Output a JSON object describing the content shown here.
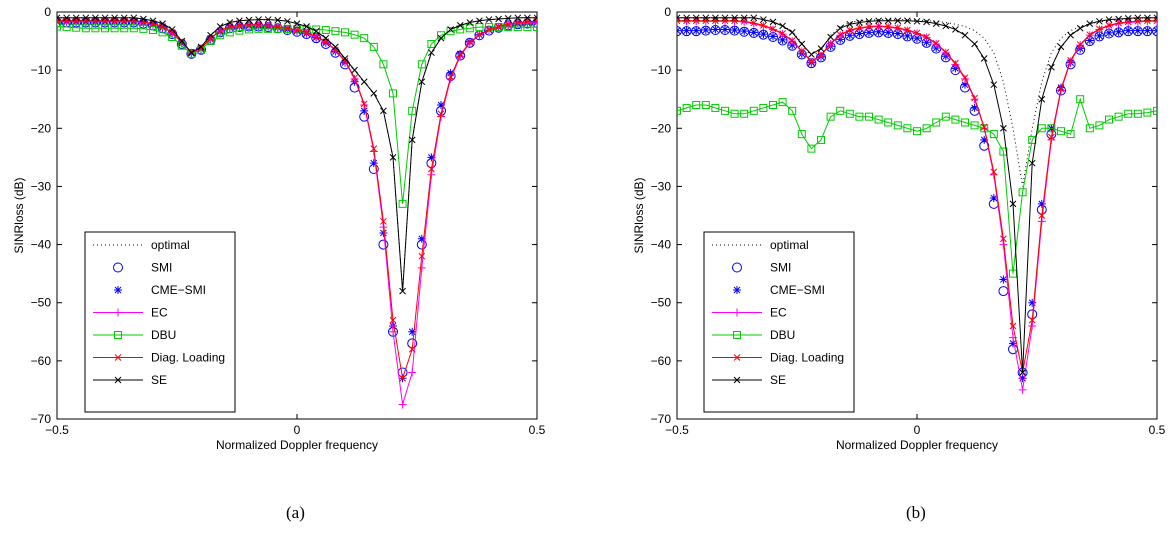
{
  "chart_data": [
    {
      "type": "line",
      "caption": "(a)",
      "xlabel": "Normalized Doppler frequency",
      "ylabel": "SINRloss (dB)",
      "xlim": [
        -0.5,
        0.5
      ],
      "ylim": [
        -70,
        0
      ],
      "xticks": [
        "−0.5",
        "0",
        "0.5"
      ],
      "yticks": [
        "−70",
        "−60",
        "−50",
        "−40",
        "−30",
        "−20",
        "−10",
        "0"
      ],
      "grid": false,
      "legend_position": "bottom-left",
      "legend": [
        {
          "name": "optimal",
          "color": "#000000",
          "marker": "none",
          "dash": "dotted"
        },
        {
          "name": "SMI",
          "color": "#0000ff",
          "marker": "circle",
          "dash": "none"
        },
        {
          "name": "CME−SMI",
          "color": "#0000ff",
          "marker": "star",
          "dash": "none"
        },
        {
          "name": "EC",
          "color": "#ff00ff",
          "marker": "plus",
          "dash": "solid"
        },
        {
          "name": "DBU",
          "color": "#00cc00",
          "marker": "square",
          "dash": "solid"
        },
        {
          "name": "Diag. Loading",
          "color": "#ff0000",
          "marker": "x",
          "dash": "solid"
        },
        {
          "name": "SE",
          "color": "#000000",
          "marker": "x",
          "dash": "solid"
        }
      ],
      "x": [
        -0.5,
        -0.48,
        -0.46,
        -0.44,
        -0.42,
        -0.4,
        -0.38,
        -0.36,
        -0.34,
        -0.32,
        -0.3,
        -0.28,
        -0.26,
        -0.24,
        -0.22,
        -0.2,
        -0.18,
        -0.16,
        -0.14,
        -0.12,
        -0.1,
        -0.08,
        -0.06,
        -0.04,
        -0.02,
        0,
        0.02,
        0.04,
        0.06,
        0.08,
        0.1,
        0.12,
        0.14,
        0.16,
        0.18,
        0.2,
        0.22,
        0.24,
        0.26,
        0.28,
        0.3,
        0.32,
        0.34,
        0.36,
        0.38,
        0.4,
        0.42,
        0.44,
        0.46,
        0.48,
        0.5
      ],
      "series": [
        {
          "name": "optimal",
          "values": [
            -1,
            -1,
            -1,
            -1,
            -1,
            -1,
            -1,
            -1,
            -1,
            -1.2,
            -1.5,
            -2,
            -3,
            -5,
            -7,
            -6,
            -4,
            -2.5,
            -1.8,
            -1.5,
            -1.4,
            -1.3,
            -1.3,
            -1.4,
            -1.6,
            -2,
            -2.5,
            -3.3,
            -4.5,
            -6,
            -8,
            -10,
            -12,
            -14,
            -17,
            -25,
            -48,
            -22,
            -12,
            -7,
            -4.5,
            -3,
            -2.3,
            -1.8,
            -1.5,
            -1.3,
            -1.2,
            -1.1,
            -1,
            -1,
            -1
          ]
        },
        {
          "name": "SMI",
          "values": [
            -1.8,
            -1.8,
            -1.8,
            -1.8,
            -1.8,
            -1.8,
            -1.8,
            -1.8,
            -1.8,
            -2,
            -2.3,
            -2.8,
            -3.8,
            -5.5,
            -7.2,
            -6.5,
            -4.8,
            -3.5,
            -2.8,
            -2.6,
            -2.5,
            -2.5,
            -2.6,
            -2.8,
            -3.1,
            -3.4,
            -3.8,
            -4.5,
            -5.5,
            -7,
            -9,
            -13,
            -18,
            -27,
            -40,
            -55,
            -62,
            -57,
            -40,
            -26,
            -17,
            -11,
            -7.5,
            -5.3,
            -4,
            -3.2,
            -2.7,
            -2.3,
            -2.1,
            -2,
            -1.9
          ]
        },
        {
          "name": "CME−SMI",
          "values": [
            -1.7,
            -1.7,
            -1.7,
            -1.7,
            -1.7,
            -1.7,
            -1.7,
            -1.7,
            -1.7,
            -1.9,
            -2.2,
            -2.7,
            -3.7,
            -5.4,
            -7.1,
            -6.4,
            -4.7,
            -3.4,
            -2.7,
            -2.5,
            -2.4,
            -2.4,
            -2.5,
            -2.7,
            -3,
            -3.3,
            -3.7,
            -4.4,
            -5.3,
            -6.8,
            -8.7,
            -12,
            -17,
            -26,
            -38,
            -54,
            -63,
            -55,
            -39,
            -25,
            -16,
            -10.5,
            -7.2,
            -5.1,
            -3.9,
            -3.1,
            -2.6,
            -2.2,
            -2,
            -1.9,
            -1.8
          ]
        },
        {
          "name": "EC",
          "values": [
            -1.6,
            -1.6,
            -1.6,
            -1.6,
            -1.6,
            -1.6,
            -1.6,
            -1.6,
            -1.6,
            -1.8,
            -2.1,
            -2.6,
            -3.6,
            -5.3,
            -7,
            -6.3,
            -4.6,
            -3.3,
            -2.6,
            -2.4,
            -2.3,
            -2.3,
            -2.4,
            -2.6,
            -2.9,
            -3.2,
            -3.6,
            -4.3,
            -5.2,
            -6.6,
            -8.5,
            -11.5,
            -16,
            -24,
            -37,
            -55,
            -67.5,
            -62,
            -44,
            -28,
            -18,
            -11.5,
            -7.6,
            -5.3,
            -4,
            -3.1,
            -2.6,
            -2.2,
            -1.9,
            -1.8,
            -1.7
          ]
        },
        {
          "name": "DBU",
          "values": [
            -2.5,
            -2.6,
            -2.7,
            -2.8,
            -2.8,
            -2.8,
            -2.8,
            -2.8,
            -2.8,
            -2.9,
            -3.1,
            -3.5,
            -4.3,
            -5.8,
            -7.2,
            -6.5,
            -5,
            -4,
            -3.5,
            -3.2,
            -3,
            -2.9,
            -2.9,
            -2.9,
            -2.9,
            -3,
            -3,
            -3,
            -3.1,
            -3.3,
            -3.5,
            -3.9,
            -4.5,
            -6,
            -9,
            -14,
            -33,
            -17,
            -9,
            -5.5,
            -4,
            -3.3,
            -3,
            -2.8,
            -2.6,
            -2.6,
            -2.6,
            -2.6,
            -2.6,
            -2.6,
            -2.6
          ]
        },
        {
          "name": "Diag. Loading",
          "values": [
            -1.5,
            -1.5,
            -1.5,
            -1.5,
            -1.5,
            -1.5,
            -1.5,
            -1.5,
            -1.5,
            -1.7,
            -2,
            -2.5,
            -3.5,
            -5.2,
            -6.9,
            -6.2,
            -4.5,
            -3.2,
            -2.5,
            -2.3,
            -2.2,
            -2.2,
            -2.3,
            -2.5,
            -2.8,
            -3.1,
            -3.5,
            -4.2,
            -5.1,
            -6.5,
            -8.4,
            -11.3,
            -15.8,
            -23.5,
            -36,
            -53,
            -63,
            -58,
            -42,
            -27,
            -17.5,
            -11.2,
            -7.4,
            -5.2,
            -3.9,
            -3,
            -2.5,
            -2.1,
            -1.8,
            -1.7,
            -1.6
          ]
        },
        {
          "name": "SE",
          "values": [
            -1,
            -1,
            -1,
            -1,
            -1,
            -1,
            -1,
            -1,
            -1,
            -1.2,
            -1.5,
            -2,
            -3,
            -5,
            -7,
            -6,
            -4,
            -2.5,
            -1.8,
            -1.5,
            -1.4,
            -1.3,
            -1.3,
            -1.4,
            -1.6,
            -2,
            -2.5,
            -3.3,
            -4.5,
            -6,
            -8,
            -10,
            -12,
            -14,
            -17,
            -25,
            -48,
            -22,
            -12,
            -7,
            -4.5,
            -3,
            -2.3,
            -1.8,
            -1.5,
            -1.3,
            -1.2,
            -1.1,
            -1,
            -1,
            -1
          ]
        }
      ]
    },
    {
      "type": "line",
      "caption": "(b)",
      "xlabel": "Normalized Doppler frequency",
      "ylabel": "SINRloss (dB)",
      "xlim": [
        -0.5,
        0.5
      ],
      "ylim": [
        -70,
        0
      ],
      "xticks": [
        "−0.5",
        "0",
        "0.5"
      ],
      "yticks": [
        "−70",
        "−60",
        "−50",
        "−40",
        "−30",
        "−20",
        "−10",
        "0"
      ],
      "grid": false,
      "legend_position": "bottom-left",
      "legend": [
        {
          "name": "optimal",
          "color": "#000000",
          "marker": "none",
          "dash": "dotted"
        },
        {
          "name": "SMI",
          "color": "#0000ff",
          "marker": "circle",
          "dash": "none"
        },
        {
          "name": "CME−SMI",
          "color": "#0000ff",
          "marker": "star",
          "dash": "none"
        },
        {
          "name": "EC",
          "color": "#ff00ff",
          "marker": "plus",
          "dash": "solid"
        },
        {
          "name": "DBU",
          "color": "#00cc00",
          "marker": "square",
          "dash": "solid"
        },
        {
          "name": "Diag. Loading",
          "color": "#ff0000",
          "marker": "x",
          "dash": "solid"
        },
        {
          "name": "SE",
          "color": "#000000",
          "marker": "x",
          "dash": "solid"
        }
      ],
      "x": [
        -0.5,
        -0.48,
        -0.46,
        -0.44,
        -0.42,
        -0.4,
        -0.38,
        -0.36,
        -0.34,
        -0.32,
        -0.3,
        -0.28,
        -0.26,
        -0.24,
        -0.22,
        -0.2,
        -0.18,
        -0.16,
        -0.14,
        -0.12,
        -0.1,
        -0.08,
        -0.06,
        -0.04,
        -0.02,
        0,
        0.02,
        0.04,
        0.06,
        0.08,
        0.1,
        0.12,
        0.14,
        0.16,
        0.18,
        0.2,
        0.22,
        0.24,
        0.26,
        0.28,
        0.3,
        0.32,
        0.34,
        0.36,
        0.38,
        0.4,
        0.42,
        0.44,
        0.46,
        0.48,
        0.5
      ],
      "series": [
        {
          "name": "optimal",
          "values": [
            -1,
            -1,
            -1,
            -1,
            -1,
            -1,
            -1,
            -1,
            -1,
            -1.3,
            -1.7,
            -2.3,
            -3.3,
            -5.3,
            -7.8,
            -6.5,
            -4,
            -2.5,
            -1.8,
            -1.5,
            -1.4,
            -1.3,
            -1.3,
            -1.3,
            -1.3,
            -1.4,
            -1.5,
            -1.6,
            -1.8,
            -2.1,
            -2.5,
            -3.2,
            -4.5,
            -7,
            -12,
            -20,
            -30,
            -20,
            -12,
            -7,
            -4.5,
            -3.2,
            -2.5,
            -2,
            -1.7,
            -1.5,
            -1.3,
            -1.2,
            -1.1,
            -1,
            -1
          ]
        },
        {
          "name": "SMI",
          "values": [
            -3.3,
            -3.3,
            -3.3,
            -3.2,
            -3.1,
            -3.1,
            -3.2,
            -3.4,
            -3.6,
            -3.9,
            -4.3,
            -4.9,
            -5.8,
            -7.3,
            -8.8,
            -7.8,
            -6,
            -4.8,
            -4.1,
            -3.8,
            -3.6,
            -3.5,
            -3.6,
            -3.8,
            -4.2,
            -4.6,
            -5.3,
            -6.3,
            -7.8,
            -10,
            -13,
            -17,
            -23,
            -33,
            -48,
            -58,
            -62,
            -52,
            -34,
            -21,
            -13.5,
            -9,
            -6.5,
            -5,
            -4.2,
            -3.7,
            -3.5,
            -3.3,
            -3.3,
            -3.3,
            -3.3
          ]
        },
        {
          "name": "CME−SMI",
          "values": [
            -3.2,
            -3.2,
            -3.2,
            -3.1,
            -3,
            -3,
            -3.1,
            -3.3,
            -3.5,
            -3.8,
            -4.2,
            -4.8,
            -5.7,
            -7.2,
            -8.7,
            -7.7,
            -5.9,
            -4.7,
            -4,
            -3.7,
            -3.5,
            -3.4,
            -3.5,
            -3.7,
            -4.1,
            -4.5,
            -5.2,
            -6.2,
            -7.6,
            -9.7,
            -12.5,
            -16.5,
            -22,
            -32,
            -46,
            -57,
            -63,
            -50,
            -33,
            -20,
            -13,
            -8.7,
            -6.3,
            -4.9,
            -4.1,
            -3.6,
            -3.4,
            -3.2,
            -3.2,
            -3.2,
            -3.2
          ]
        },
        {
          "name": "EC",
          "values": [
            -1.6,
            -1.6,
            -1.6,
            -1.6,
            -1.6,
            -1.6,
            -1.6,
            -1.7,
            -2,
            -2.4,
            -3,
            -3.8,
            -5,
            -6.8,
            -8.6,
            -7.5,
            -5.5,
            -4,
            -3.2,
            -2.8,
            -2.6,
            -2.5,
            -2.6,
            -2.8,
            -3.2,
            -3.7,
            -4.4,
            -5.5,
            -7,
            -9,
            -11.5,
            -15,
            -20,
            -28,
            -40,
            -56,
            -65,
            -54,
            -36,
            -22,
            -13.5,
            -8.5,
            -5.7,
            -4,
            -3,
            -2.4,
            -2,
            -1.8,
            -1.7,
            -1.6,
            -1.6
          ]
        },
        {
          "name": "DBU",
          "values": [
            -17,
            -16.5,
            -16,
            -16,
            -16.5,
            -17,
            -17.5,
            -17.5,
            -17,
            -16.5,
            -16,
            -15.5,
            -17,
            -21,
            -23.5,
            -22,
            -18,
            -17,
            -17.5,
            -18,
            -18,
            -18.5,
            -19,
            -19.5,
            -20,
            -20.5,
            -20,
            -19,
            -18,
            -18.5,
            -19,
            -19.5,
            -20,
            -21,
            -24,
            -45,
            -31,
            -22,
            -20,
            -20,
            -20.5,
            -21,
            -15,
            -20,
            -19.5,
            -18.5,
            -18,
            -17.5,
            -17.5,
            -17.3,
            -17
          ]
        },
        {
          "name": "Diag. Loading",
          "values": [
            -1.5,
            -1.5,
            -1.5,
            -1.5,
            -1.5,
            -1.5,
            -1.5,
            -1.6,
            -1.9,
            -2.3,
            -2.9,
            -3.7,
            -4.9,
            -6.7,
            -8.5,
            -7.4,
            -5.4,
            -3.9,
            -3.1,
            -2.7,
            -2.5,
            -2.4,
            -2.5,
            -2.7,
            -3.1,
            -3.6,
            -4.3,
            -5.4,
            -6.9,
            -8.8,
            -11.3,
            -14.8,
            -19.8,
            -27.5,
            -39,
            -54,
            -62,
            -53,
            -35,
            -21.5,
            -13.2,
            -8.3,
            -5.6,
            -3.9,
            -2.9,
            -2.3,
            -1.9,
            -1.7,
            -1.6,
            -1.5,
            -1.5
          ]
        },
        {
          "name": "SE",
          "values": [
            -1,
            -1,
            -1,
            -1,
            -1,
            -1,
            -1,
            -1,
            -1,
            -1.3,
            -1.7,
            -2.4,
            -3.5,
            -5.5,
            -7.3,
            -6.3,
            -4.3,
            -2.8,
            -2.1,
            -1.8,
            -1.6,
            -1.5,
            -1.5,
            -1.5,
            -1.5,
            -1.6,
            -1.7,
            -2,
            -2.4,
            -3,
            -4,
            -5.5,
            -8,
            -12.5,
            -20,
            -33,
            -62,
            -26,
            -15,
            -9.5,
            -6,
            -4,
            -2.8,
            -2,
            -1.6,
            -1.3,
            -1.2,
            -1.1,
            -1,
            -1,
            -1
          ]
        }
      ]
    }
  ]
}
